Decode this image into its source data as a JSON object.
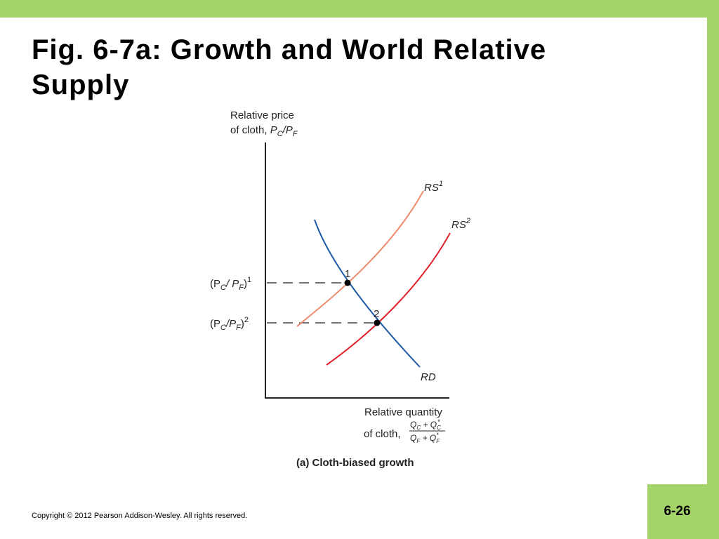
{
  "header": {
    "title": "Fig. 6-7a: Growth and World Relative Supply"
  },
  "diagram": {
    "y_axis_label": {
      "line1": "Relative price",
      "line2": "of cloth, ",
      "p1": "P",
      "s1": "C",
      "p2": "/P",
      "s2": "F"
    },
    "x_axis_label": {
      "line1": "Relative quantity",
      "line2": "of cloth,",
      "numerator": {
        "q1": "Q",
        "s1": "C",
        "plus": " + Q",
        "s2": "C",
        "star": "*"
      },
      "denominator": {
        "q1": "Q",
        "s1": "F",
        "plus": " + Q",
        "s2": "F",
        "star": "*"
      }
    },
    "price_1": {
      "open": "(P",
      "s1": "C",
      "mid": "/ P",
      "s2": "F",
      "close": ")",
      "sup": "1"
    },
    "price_2": {
      "open": "(P",
      "s1": "C",
      "mid": "/P",
      "s2": "F",
      "close": ")",
      "sup": "2"
    },
    "curves": {
      "rs1": {
        "name": "RS",
        "sup": "1"
      },
      "rs2": {
        "name": "RS",
        "sup": "2"
      },
      "rd": {
        "name": "RD"
      }
    },
    "points": [
      "1",
      "2"
    ],
    "caption": "(a) Cloth-biased growth"
  },
  "footer": {
    "copyright": "Copyright © 2012 Pearson Addison-Wesley. All rights reserved.",
    "slide_number": "6-26"
  }
}
